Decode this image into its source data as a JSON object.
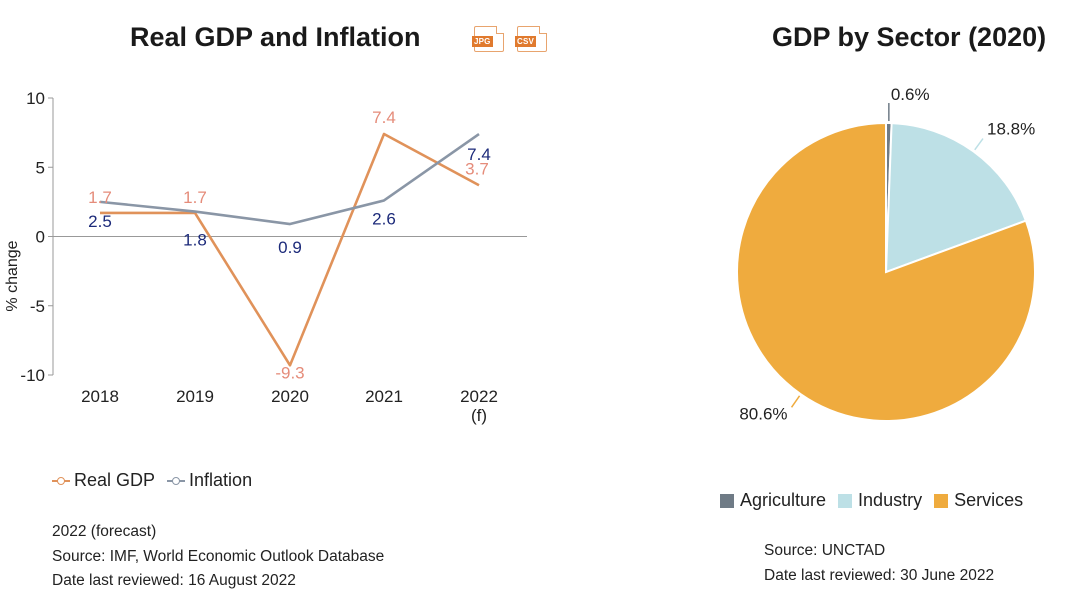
{
  "line_chart": {
    "jpg_label": "JPG",
    "csv_label": "CSV"
  },
  "pie_chart": {},
  "colors": {
    "real_gdp": "#e0925a",
    "inflation": "#8a96a6",
    "agriculture": "#6f7b86",
    "industry": "#bde0e6",
    "services": "#efab3e",
    "gdp_label": "#e58c7a",
    "inflation_label": "#1c2a7a"
  },
  "chart_data": [
    {
      "type": "line",
      "title": "Real GDP and Inflation",
      "ylabel": "% change",
      "xlabel": "",
      "categories": [
        "2018",
        "2019",
        "2020",
        "2021",
        "2022 (f)"
      ],
      "category_lines": [
        [
          "2018"
        ],
        [
          "2019"
        ],
        [
          "2020"
        ],
        [
          "2021"
        ],
        [
          "2022",
          "(f)"
        ]
      ],
      "ylim": [
        -10,
        10
      ],
      "yticks": [
        10,
        5,
        0,
        -5,
        -10
      ],
      "ytick_labels": [
        "10",
        "5",
        "0",
        "-5",
        "-10"
      ],
      "series": [
        {
          "name": "Real GDP",
          "values": [
            1.7,
            1.7,
            -9.3,
            7.4,
            3.7
          ],
          "labels": [
            "1.7",
            "1.7",
            "-9.3",
            "7.4",
            "3.7"
          ]
        },
        {
          "name": "Inflation",
          "values": [
            2.5,
            1.8,
            0.9,
            2.6,
            7.4
          ],
          "labels": [
            "2.5",
            "1.8",
            "0.9",
            "2.6",
            "7.4"
          ]
        }
      ],
      "legend": [
        "Real GDP",
        "Inflation"
      ],
      "notes": [
        "2022 (forecast)",
        "Source: IMF, World Economic Outlook Database",
        "Date last reviewed: 16 August 2022"
      ]
    },
    {
      "type": "pie",
      "title": "GDP by Sector (2020)",
      "categories": [
        "Agriculture",
        "Industry",
        "Services"
      ],
      "values": [
        0.6,
        18.8,
        80.6
      ],
      "labels": [
        "0.6%",
        "18.8%",
        "80.6%"
      ],
      "legend": [
        "Agriculture",
        "Industry",
        "Services"
      ],
      "notes": [
        "Source: UNCTAD",
        "Date last reviewed: 30 June 2022"
      ]
    }
  ]
}
